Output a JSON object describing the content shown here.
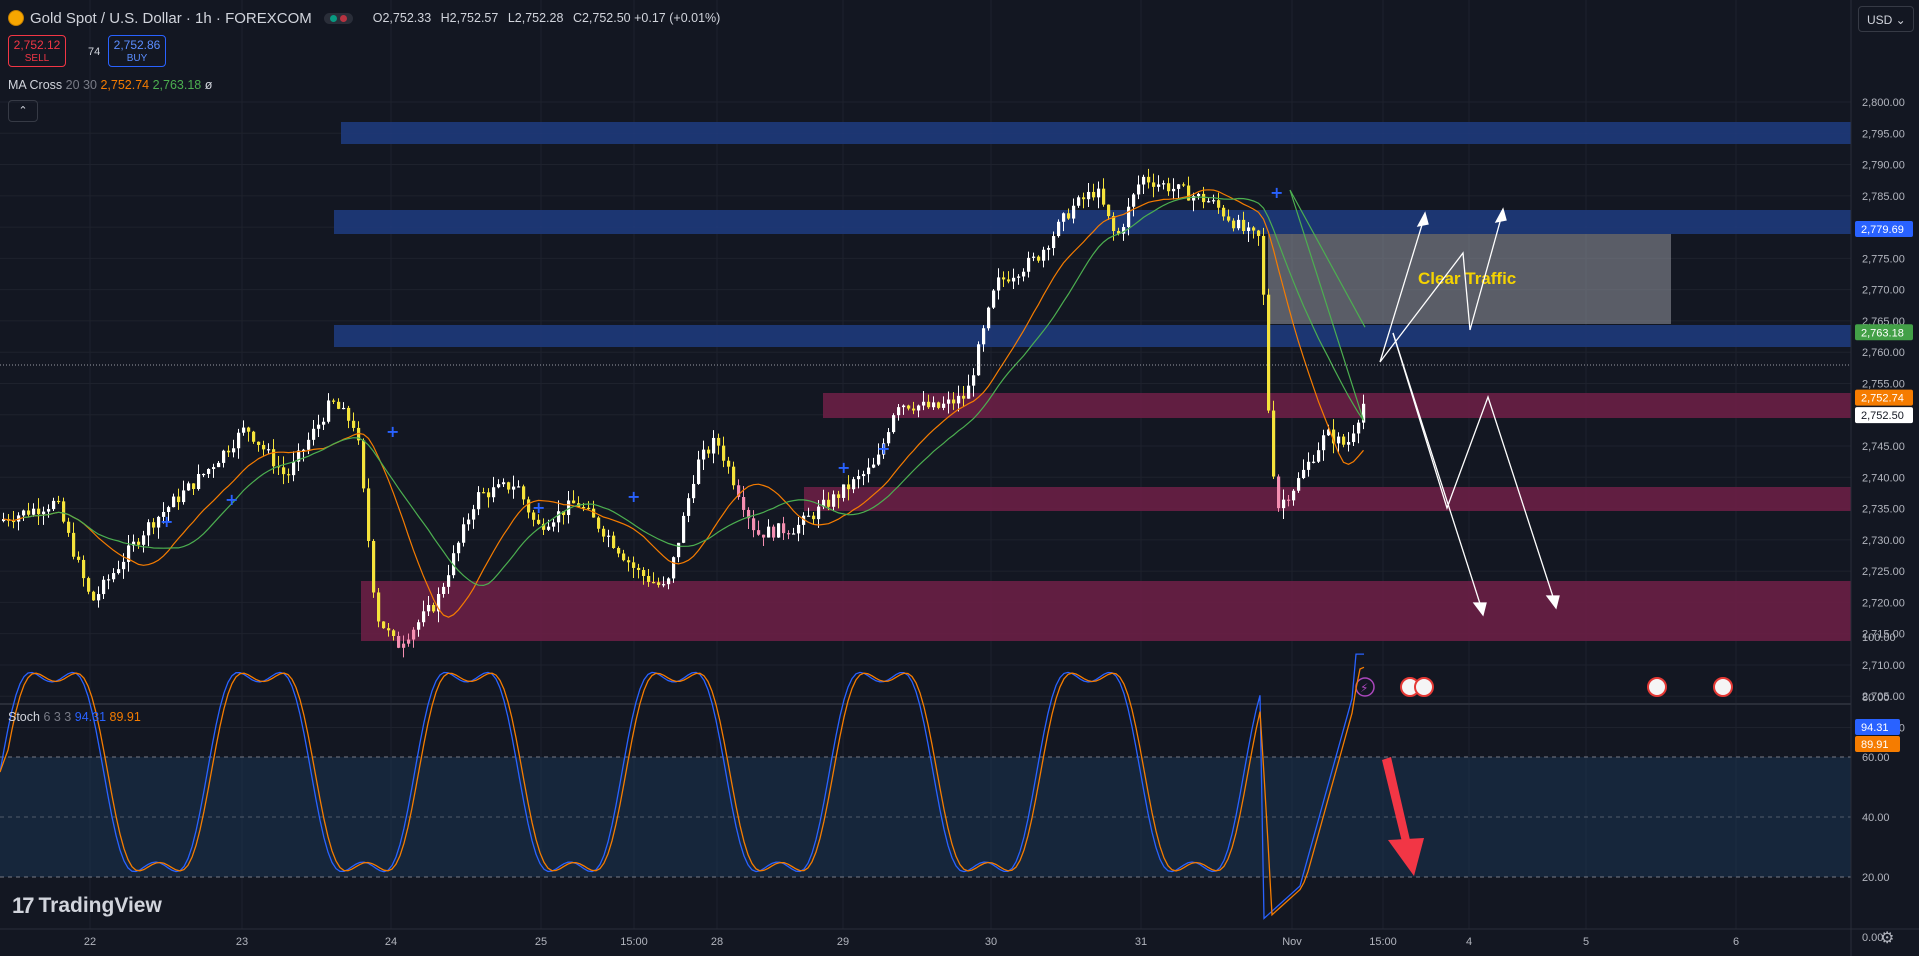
{
  "header": {
    "symbol": "Gold Spot / U.S. Dollar · 1h · FOREXCOM",
    "ohlc": {
      "o_label": "O",
      "o": "2,752.33",
      "h_label": "H",
      "h": "2,752.57",
      "l_label": "L",
      "l": "2,752.28",
      "c_label": "C",
      "c": "2,752.50",
      "change": "+0.17 (+0.01%)"
    }
  },
  "trade": {
    "sell_price": "2,752.12",
    "sell_label": "SELL",
    "spread": "74",
    "buy_price": "2,752.86",
    "buy_label": "BUY"
  },
  "ma_cross": {
    "name": "MA Cross",
    "params": "20 30",
    "v1": "2,752.74",
    "v2": "2,763.18",
    "icon": "ø"
  },
  "stoch": {
    "name": "Stoch",
    "params": "6 3 3",
    "k": "94.31",
    "d": "89.91"
  },
  "currency": "USD",
  "brand": "TradingView",
  "annotation": "Clear Traffic",
  "price_axis": {
    "ticks": [
      "2,800.00",
      "2,795.00",
      "2,790.00",
      "2,785.00",
      "2,780.00",
      "2,775.00",
      "2,770.00",
      "2,765.00",
      "2,760.00",
      "2,755.00",
      "2,750.00",
      "2,745.00",
      "2,740.00",
      "2,735.00",
      "2,730.00",
      "2,725.00",
      "2,720.00",
      "2,715.00",
      "2,710.00",
      "2,705.00",
      "2,700.00"
    ],
    "badges": [
      {
        "label": "2,779.69",
        "color": "#2962ff"
      },
      {
        "label": "2,763.18",
        "color": "#43a047"
      },
      {
        "label": "2,752.74",
        "color": "#f57c00"
      },
      {
        "label": "2,752.50",
        "color": "#ffffff"
      }
    ]
  },
  "stoch_axis": {
    "ticks": [
      "100.00",
      "80.00",
      "60.00",
      "40.00",
      "20.00",
      "0.00"
    ],
    "badges": [
      {
        "label": "94.31",
        "color": "#2962ff"
      },
      {
        "label": "89.91",
        "color": "#f57c00"
      }
    ]
  },
  "time_axis": [
    "22",
    "23",
    "24",
    "25",
    "15:00",
    "28",
    "29",
    "30",
    "31",
    "Nov",
    "15:00",
    "4",
    "5",
    "6"
  ],
  "colors": {
    "background": "#131722",
    "bull": "#ffffff",
    "bear": "#f5e33b",
    "highlight_bar": "#f48fb1",
    "supply_zone": "#1e3a7b",
    "demand_zone": "#6a1f45",
    "ma_fast": "#f57c00",
    "ma_slow": "#4caf50",
    "stoch_k": "#2962ff",
    "stoch_d": "#f57c00"
  },
  "icons": [
    "coin-icon",
    "market-status-icon",
    "chevron-up-icon",
    "lightning-icon",
    "us-flag-icon",
    "tradingview-logo-icon",
    "settings-icon"
  ]
}
